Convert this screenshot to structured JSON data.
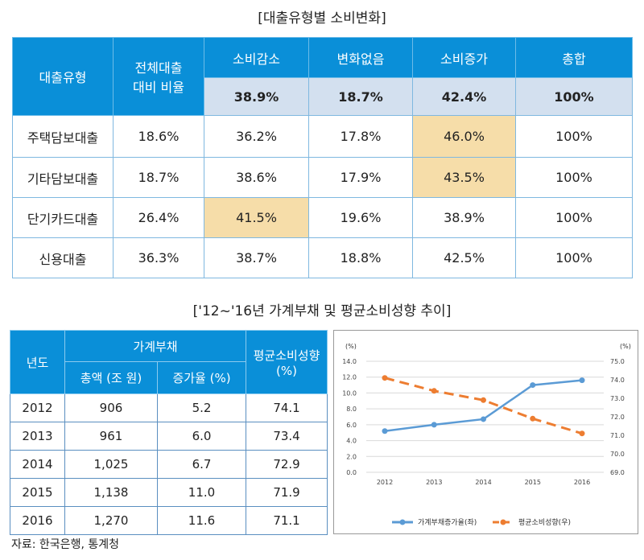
{
  "table1": {
    "title": "[대출유형별 소비변화]",
    "headers": [
      "대출유형",
      "전체대출 대비 비율",
      "소비감소",
      "변화없음",
      "소비증가",
      "총합"
    ],
    "totals": [
      "38.9%",
      "18.7%",
      "42.4%",
      "100%"
    ],
    "rows": [
      {
        "type": "주택담보대출",
        "ratio": "18.6%",
        "dec": "36.2%",
        "none": "17.8%",
        "inc": "46.0%",
        "sum": "100%"
      },
      {
        "type": "기타담보대출",
        "ratio": "18.7%",
        "dec": "38.6%",
        "none": "17.9%",
        "inc": "43.5%",
        "sum": "100%"
      },
      {
        "type": "단기카드대출",
        "ratio": "26.4%",
        "dec": "41.5%",
        "none": "19.6%",
        "inc": "38.9%",
        "sum": "100%"
      },
      {
        "type": "신용대출",
        "ratio": "36.3%",
        "dec": "38.7%",
        "none": "18.8%",
        "inc": "42.5%",
        "sum": "100%"
      }
    ],
    "highlight_color": "#f6dda9",
    "header_color": "#0a8fd8"
  },
  "section2_title": "['12~'16년 가계부채 및 평균소비성향 추이]",
  "table2": {
    "headers": {
      "year": "년도",
      "debt": "가계부채",
      "total": "총액 (조 원)",
      "growth": "증가율 (%)",
      "apc": "평균소비성향 (%)"
    },
    "rows": [
      [
        "2012",
        "906",
        "5.2",
        "74.1"
      ],
      [
        "2013",
        "961",
        "6.0",
        "73.4"
      ],
      [
        "2014",
        "1,025",
        "6.7",
        "72.9"
      ],
      [
        "2015",
        "1,138",
        "11.0",
        "71.9"
      ],
      [
        "2016",
        "1,270",
        "11.6",
        "71.1"
      ]
    ]
  },
  "source": "자료: 한국은행, 통계청",
  "chart_data": {
    "type": "line",
    "x": [
      "2012",
      "2013",
      "2014",
      "2015",
      "2016"
    ],
    "left_axis": {
      "unit": "(%)",
      "ylim": [
        0,
        14
      ],
      "ticks": [
        "0.0",
        "2.0",
        "4.0",
        "6.0",
        "8.0",
        "10.0",
        "12.0",
        "14.0"
      ]
    },
    "right_axis": {
      "unit": "(%)",
      "ylim": [
        69,
        75
      ],
      "ticks": [
        "69.0",
        "70.0",
        "71.0",
        "72.0",
        "73.0",
        "74.0",
        "75.0"
      ]
    },
    "series": [
      {
        "name": "가계부채증가율(좌)",
        "axis": "left",
        "values": [
          5.2,
          6.0,
          6.7,
          11.0,
          11.6
        ],
        "color": "#5b9bd5",
        "dash": false
      },
      {
        "name": "평균소비성향(우)",
        "axis": "right",
        "values": [
          74.1,
          73.4,
          72.9,
          71.9,
          71.1
        ],
        "color": "#ed7d31",
        "dash": true
      }
    ],
    "grid": true,
    "legend": "bottom"
  }
}
